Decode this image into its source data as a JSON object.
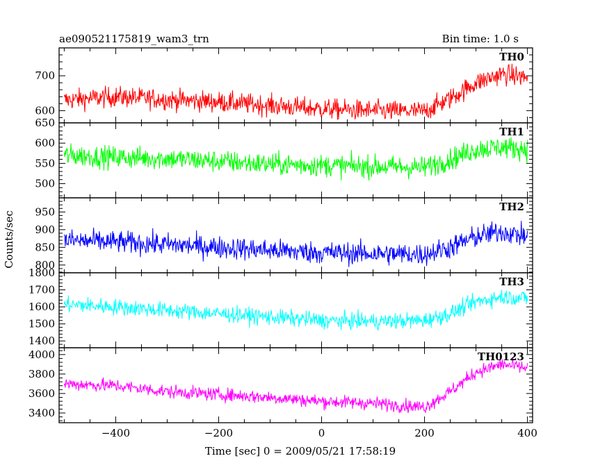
{
  "header": {
    "title": "ae090521175819_wam3_trn",
    "bin_time": "Bin time: 1.0 s"
  },
  "chart_data": {
    "type": "line",
    "title": "ae090521175819_wam3_trn",
    "subtitle": "Bin time: 1.0 s",
    "xlabel": "Time [sec] 0 = 2009/05/21 17:58:19",
    "ylabel": "Counts/sec",
    "xlim": [
      -510,
      410
    ],
    "x_ticks": [
      -400,
      -200,
      0,
      200,
      400
    ],
    "grid": false,
    "panels": [
      {
        "name": "TH0",
        "color": "#ff0000",
        "ylim": [
          565,
          780
        ],
        "y_ticks": [
          600,
          700
        ],
        "x": [
          -500,
          -400,
          -300,
          -200,
          -100,
          0,
          100,
          200,
          250,
          300,
          350,
          400
        ],
        "values": [
          630,
          640,
          632,
          625,
          615,
          605,
          600,
          598,
          635,
          680,
          705,
          695
        ],
        "noise": 28
      },
      {
        "name": "TH1",
        "color": "#00ff00",
        "ylim": [
          465,
          650
        ],
        "y_ticks": [
          500,
          550,
          600,
          650
        ],
        "x": [
          -500,
          -400,
          -300,
          -200,
          -100,
          0,
          100,
          200,
          250,
          300,
          350,
          400
        ],
        "values": [
          570,
          565,
          562,
          555,
          548,
          545,
          542,
          540,
          560,
          585,
          590,
          585
        ],
        "noise": 26
      },
      {
        "name": "TH2",
        "color": "#0000ff",
        "ylim": [
          778,
          990
        ],
        "y_ticks": [
          800,
          850,
          900,
          950
        ],
        "x": [
          -500,
          -400,
          -300,
          -200,
          -100,
          0,
          100,
          200,
          250,
          300,
          350,
          400
        ],
        "values": [
          870,
          865,
          858,
          850,
          842,
          835,
          832,
          830,
          850,
          880,
          895,
          880
        ],
        "noise": 30
      },
      {
        "name": "TH3",
        "color": "#00ffff",
        "ylim": [
          1360,
          1800
        ],
        "y_ticks": [
          1400,
          1500,
          1600,
          1700,
          1800
        ],
        "x": [
          -500,
          -400,
          -300,
          -200,
          -100,
          0,
          100,
          200,
          250,
          300,
          350,
          400
        ],
        "values": [
          1615,
          1600,
          1580,
          1560,
          1540,
          1520,
          1515,
          1520,
          1560,
          1630,
          1660,
          1650
        ],
        "noise": 45
      },
      {
        "name": "TH0123",
        "color": "#ff00ff",
        "ylim": [
          3300,
          4070
        ],
        "y_ticks": [
          3400,
          3600,
          3800,
          4000
        ],
        "x": [
          -500,
          -400,
          -300,
          -200,
          -100,
          0,
          100,
          200,
          250,
          300,
          350,
          400
        ],
        "values": [
          3700,
          3680,
          3620,
          3590,
          3560,
          3520,
          3500,
          3460,
          3620,
          3820,
          3900,
          3860
        ],
        "noise": 65
      }
    ]
  }
}
